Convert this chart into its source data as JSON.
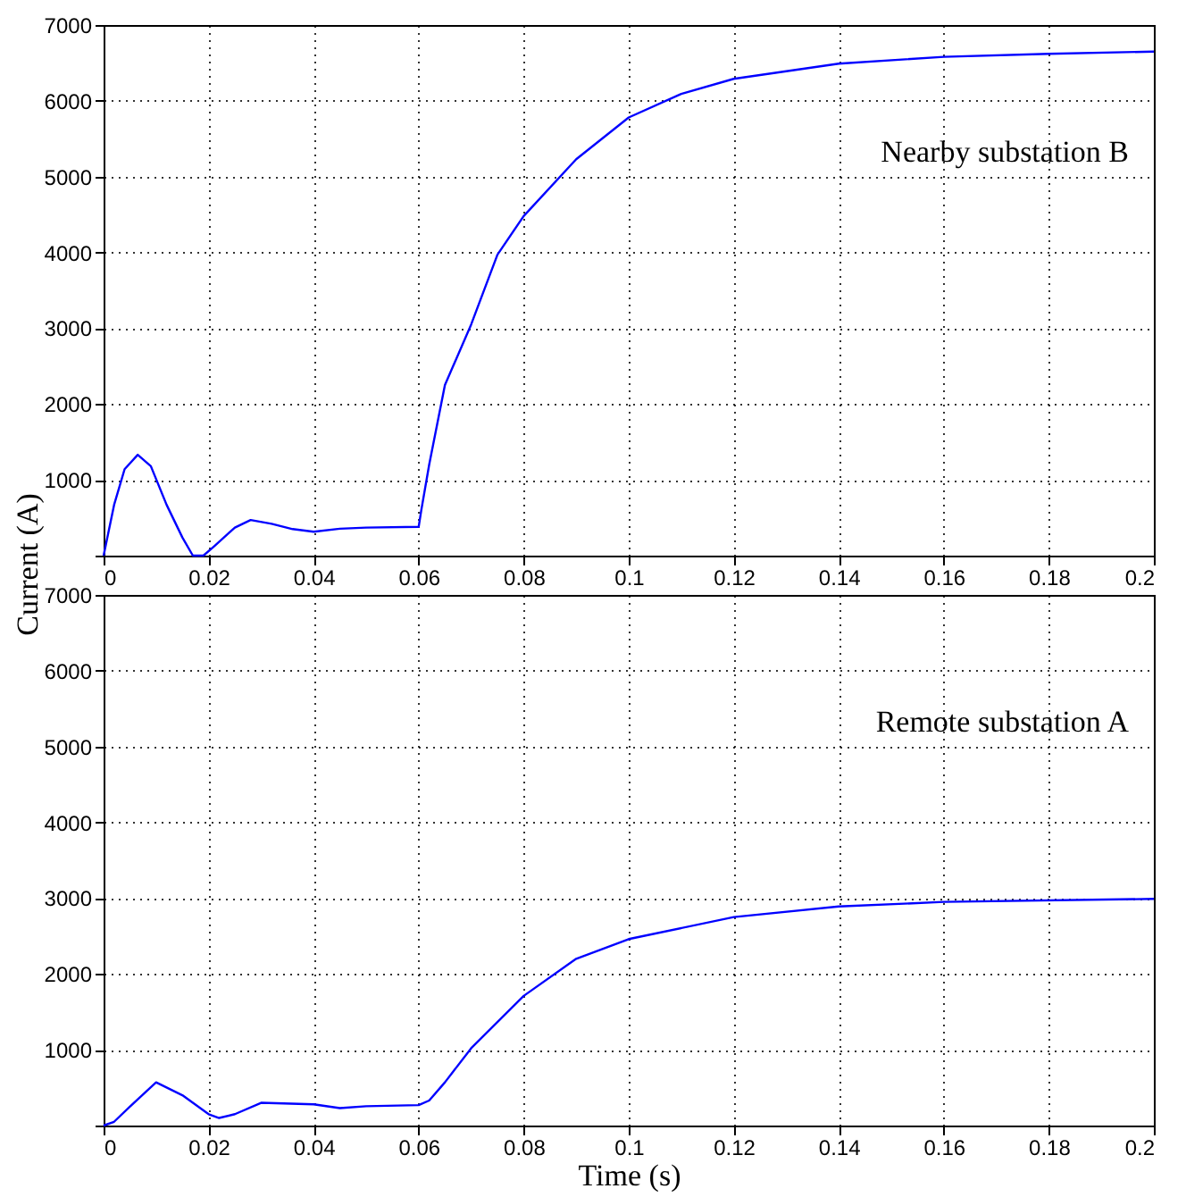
{
  "chart_data": [
    {
      "type": "line",
      "ylabel": "Current (A)",
      "annotations": [
        "Nearby substation B"
      ],
      "x": [
        0,
        0.002,
        0.004,
        0.0065,
        0.009,
        0.012,
        0.015,
        0.017,
        0.019,
        0.021,
        0.025,
        0.028,
        0.032,
        0.036,
        0.04,
        0.045,
        0.05,
        0.06,
        0.0605,
        0.062,
        0.065,
        0.07,
        0.075,
        0.08,
        0.09,
        0.1,
        0.11,
        0.12,
        0.14,
        0.16,
        0.18,
        0.2
      ],
      "series": [
        {
          "color": "#0000ff",
          "values": [
            0,
            670,
            1140,
            1330,
            1180,
            670,
            240,
            0,
            0,
            120,
            370,
            470,
            420,
            350,
            315,
            355,
            370,
            380,
            600,
            1200,
            2250,
            3050,
            3970,
            4480,
            5230,
            5780,
            6090,
            6290,
            6490,
            6580,
            6620,
            6650
          ]
        }
      ],
      "xlim": [
        0,
        0.2
      ],
      "xticks": [
        0,
        0.02,
        0.04,
        0.06,
        0.08,
        0.1,
        0.12,
        0.14,
        0.16,
        0.18,
        0.2
      ],
      "ylim": [
        0,
        7000
      ],
      "yticks": [
        {
          "value": 0,
          "label": null
        },
        1000,
        2000,
        3000,
        4000,
        5000,
        6000,
        7000
      ],
      "grid": true,
      "line_style": "solid"
    },
    {
      "type": "line",
      "xlabel": "Time (s)",
      "annotations": [
        "Remote substation A"
      ],
      "x": [
        0,
        0.002,
        0.005,
        0.01,
        0.015,
        0.02,
        0.022,
        0.025,
        0.03,
        0.04,
        0.045,
        0.05,
        0.06,
        0.062,
        0.065,
        0.07,
        0.08,
        0.09,
        0.1,
        0.12,
        0.14,
        0.16,
        0.2
      ],
      "series": [
        {
          "color": "#0000ff",
          "values": [
            0,
            50,
            250,
            570,
            400,
            150,
            100,
            150,
            300,
            280,
            230,
            255,
            270,
            330,
            570,
            1020,
            1710,
            2200,
            2460,
            2750,
            2890,
            2950,
            2990
          ]
        }
      ],
      "xlim": [
        0,
        0.2
      ],
      "xticks": [
        0,
        0.02,
        0.04,
        0.06,
        0.08,
        0.1,
        0.12,
        0.14,
        0.16,
        0.18,
        0.2
      ],
      "ylim": [
        0,
        7000
      ],
      "yticks": [
        {
          "value": 0,
          "label": null
        },
        1000,
        2000,
        3000,
        4000,
        5000,
        6000,
        7000
      ],
      "grid": true,
      "line_style": "solid"
    }
  ]
}
